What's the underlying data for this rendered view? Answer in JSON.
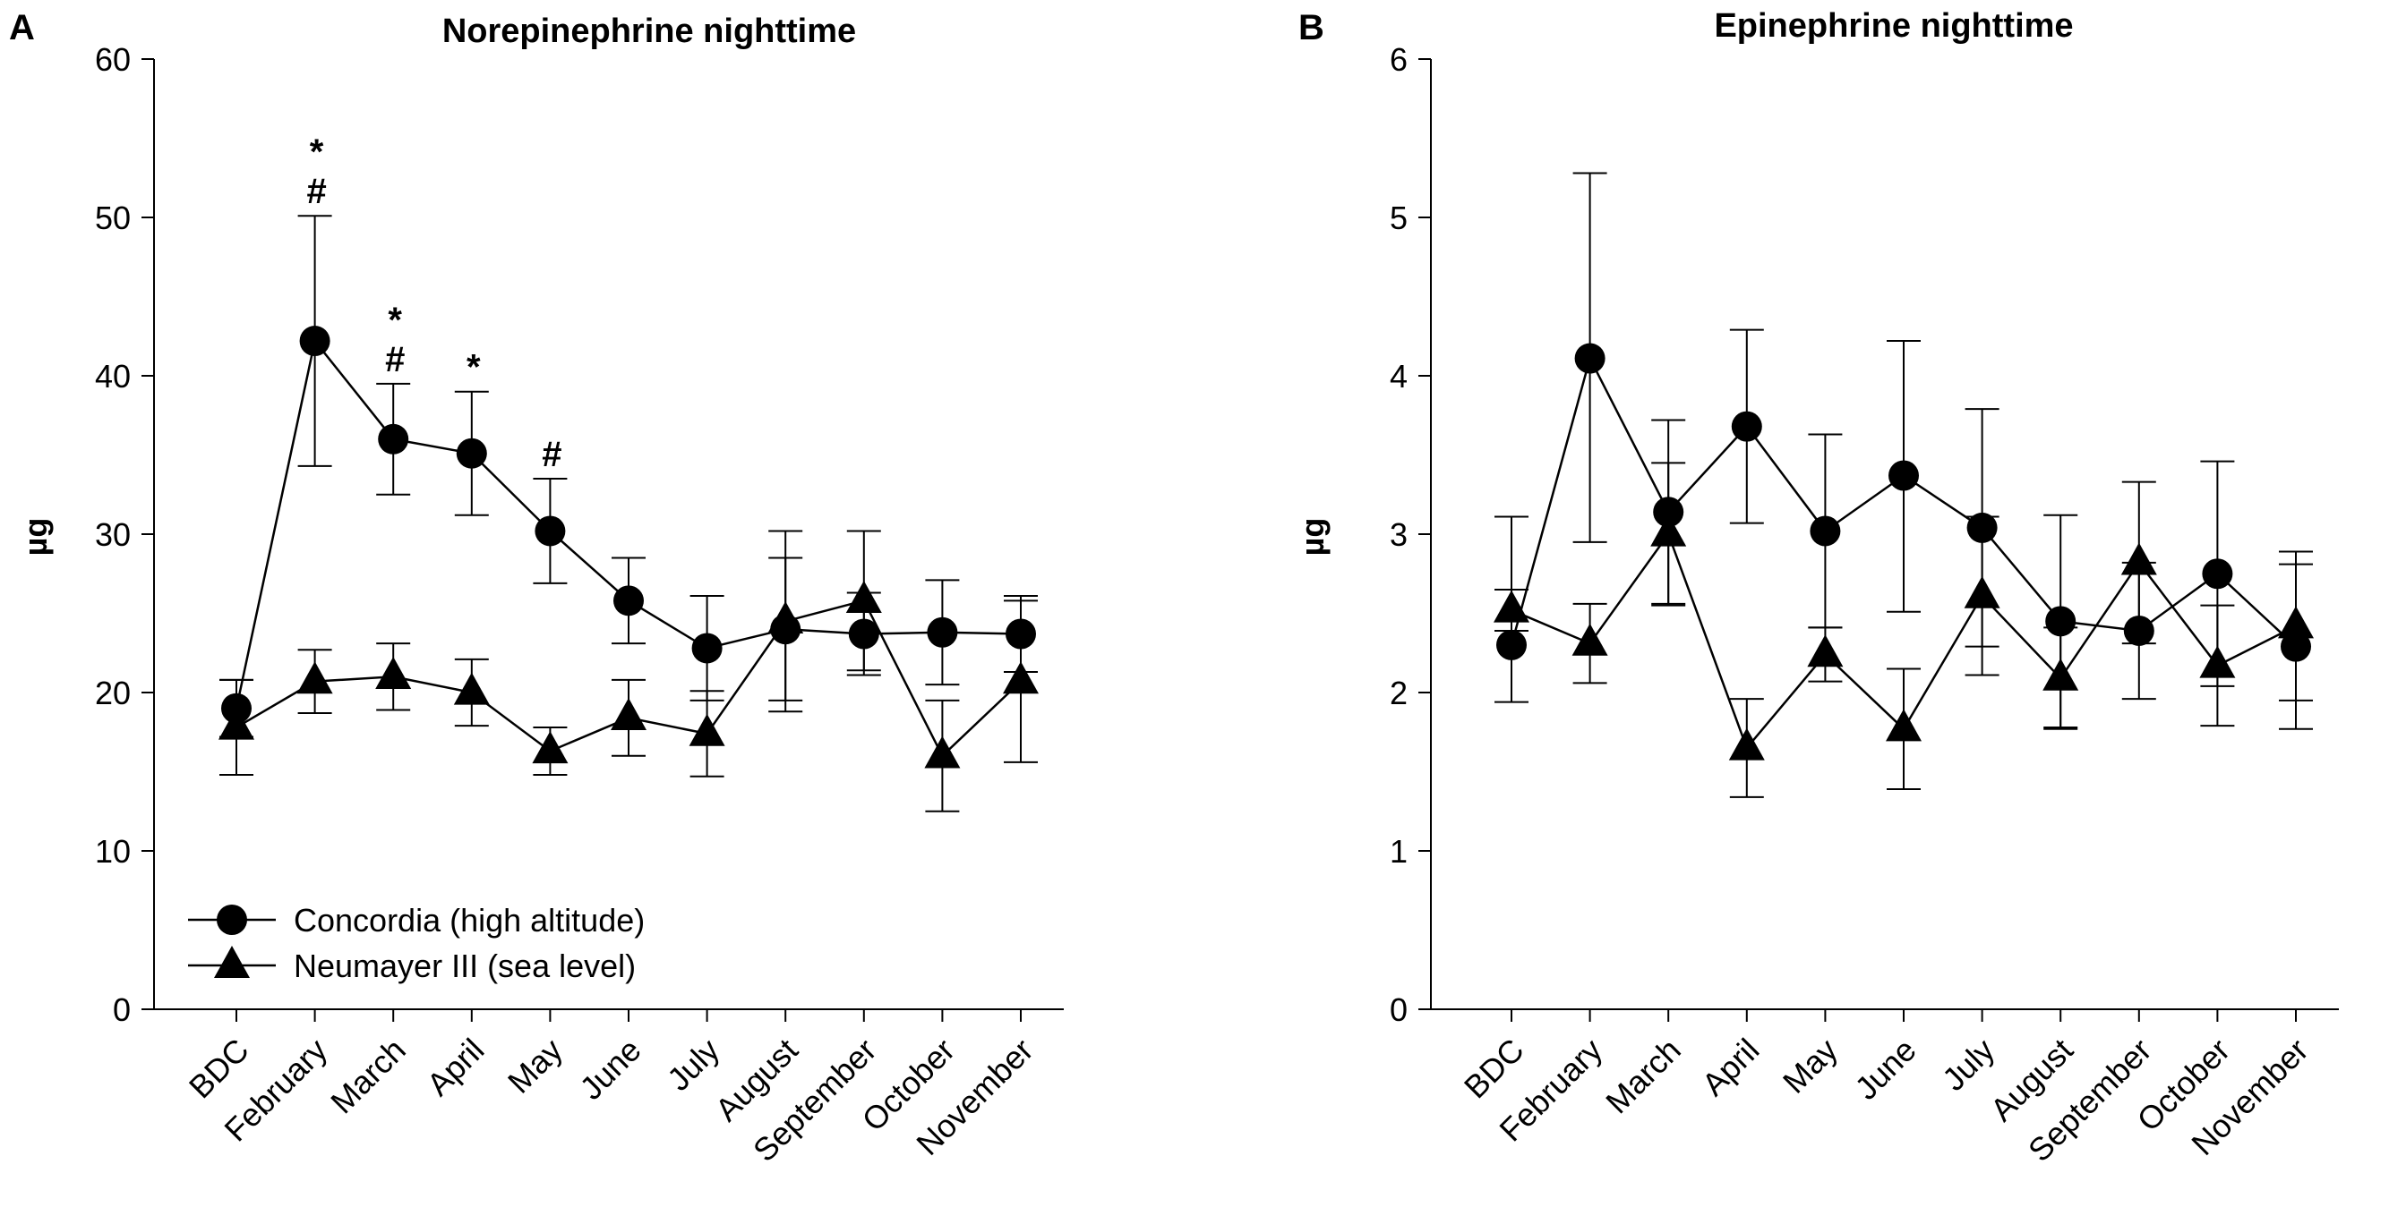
{
  "chart_data": [
    {
      "type": "line",
      "panel_letter": "A",
      "title": "Norepinephrine nighttime",
      "xlabel": "",
      "ylabel": "µg",
      "ylim": [
        0,
        60
      ],
      "yticks": [
        "0",
        "10",
        "20",
        "30",
        "40",
        "50",
        "60"
      ],
      "categories": [
        "BDC",
        "February",
        "March",
        "April",
        "May",
        "June",
        "July",
        "August",
        "September",
        "October",
        "November"
      ],
      "series": [
        {
          "name": "Concordia (high altitude)",
          "marker": "circle",
          "values": [
            19.0,
            42.2,
            36.0,
            35.1,
            30.2,
            25.8,
            22.8,
            24.0,
            23.7,
            23.8,
            23.7
          ],
          "err_upper": [
            1.8,
            7.9,
            3.5,
            3.9,
            3.3,
            2.7,
            3.3,
            4.5,
            2.6,
            3.3,
            2.4
          ],
          "err_lower": [
            1.8,
            7.9,
            3.5,
            3.9,
            3.3,
            2.7,
            3.3,
            4.5,
            2.6,
            3.3,
            2.4
          ]
        },
        {
          "name": "Neumayer III (sea level)",
          "marker": "triangle",
          "values": [
            17.8,
            20.7,
            21.0,
            20.0,
            16.3,
            18.4,
            17.4,
            24.5,
            25.8,
            16.0,
            20.7
          ],
          "err_upper": [
            3.0,
            2.0,
            2.1,
            2.1,
            1.5,
            2.4,
            2.7,
            5.7,
            4.4,
            3.5,
            5.1
          ],
          "err_lower": [
            3.0,
            2.0,
            2.1,
            2.1,
            1.5,
            2.4,
            2.7,
            5.7,
            4.4,
            3.5,
            5.1
          ]
        }
      ],
      "annotations": [
        {
          "category": "February",
          "lines": [
            "*",
            "#"
          ]
        },
        {
          "category": "March",
          "lines": [
            "*",
            "#"
          ]
        },
        {
          "category": "April",
          "lines": [
            "*"
          ]
        },
        {
          "category": "May",
          "lines": [
            "#"
          ]
        }
      ],
      "legend": {
        "position": "bottom-left",
        "entries": [
          "Concordia (high altitude)",
          "Neumayer III (sea level)"
        ]
      }
    },
    {
      "type": "line",
      "panel_letter": "B",
      "title": "Epinephrine nighttime",
      "xlabel": "",
      "ylabel": "µg",
      "ylim": [
        0,
        6
      ],
      "yticks": [
        "0",
        "1",
        "2",
        "3",
        "4",
        "5",
        "6"
      ],
      "categories": [
        "BDC",
        "February",
        "March",
        "April",
        "May",
        "June",
        "July",
        "August",
        "September",
        "October",
        "November"
      ],
      "series": [
        {
          "name": "Concordia (high altitude)",
          "marker": "circle",
          "values": [
            2.3,
            4.11,
            3.14,
            3.68,
            3.02,
            3.37,
            3.04,
            2.45,
            2.39,
            2.75,
            2.29
          ],
          "err_upper": [
            0.81,
            1.17,
            0.58,
            0.61,
            0.61,
            0.85,
            0.75,
            0.67,
            0.43,
            0.71,
            0.52
          ],
          "err_lower": [
            0.36,
            1.16,
            0.58,
            0.61,
            0.61,
            0.86,
            0.75,
            0.67,
            0.43,
            0.71,
            0.52
          ]
        },
        {
          "name": "Neumayer III (sea level)",
          "marker": "triangle",
          "values": [
            2.52,
            2.31,
            3.0,
            1.65,
            2.24,
            1.77,
            2.61,
            2.09,
            2.82,
            2.17,
            2.42
          ],
          "err_upper": [
            0.13,
            0.25,
            0.45,
            0.31,
            0.17,
            0.38,
            0.5,
            0.32,
            0.51,
            0.38,
            0.47
          ],
          "err_lower": [
            0.13,
            0.25,
            0.45,
            0.31,
            0.17,
            0.38,
            0.5,
            0.32,
            0.51,
            0.38,
            0.47
          ]
        }
      ],
      "annotations": [],
      "legend": null
    }
  ]
}
